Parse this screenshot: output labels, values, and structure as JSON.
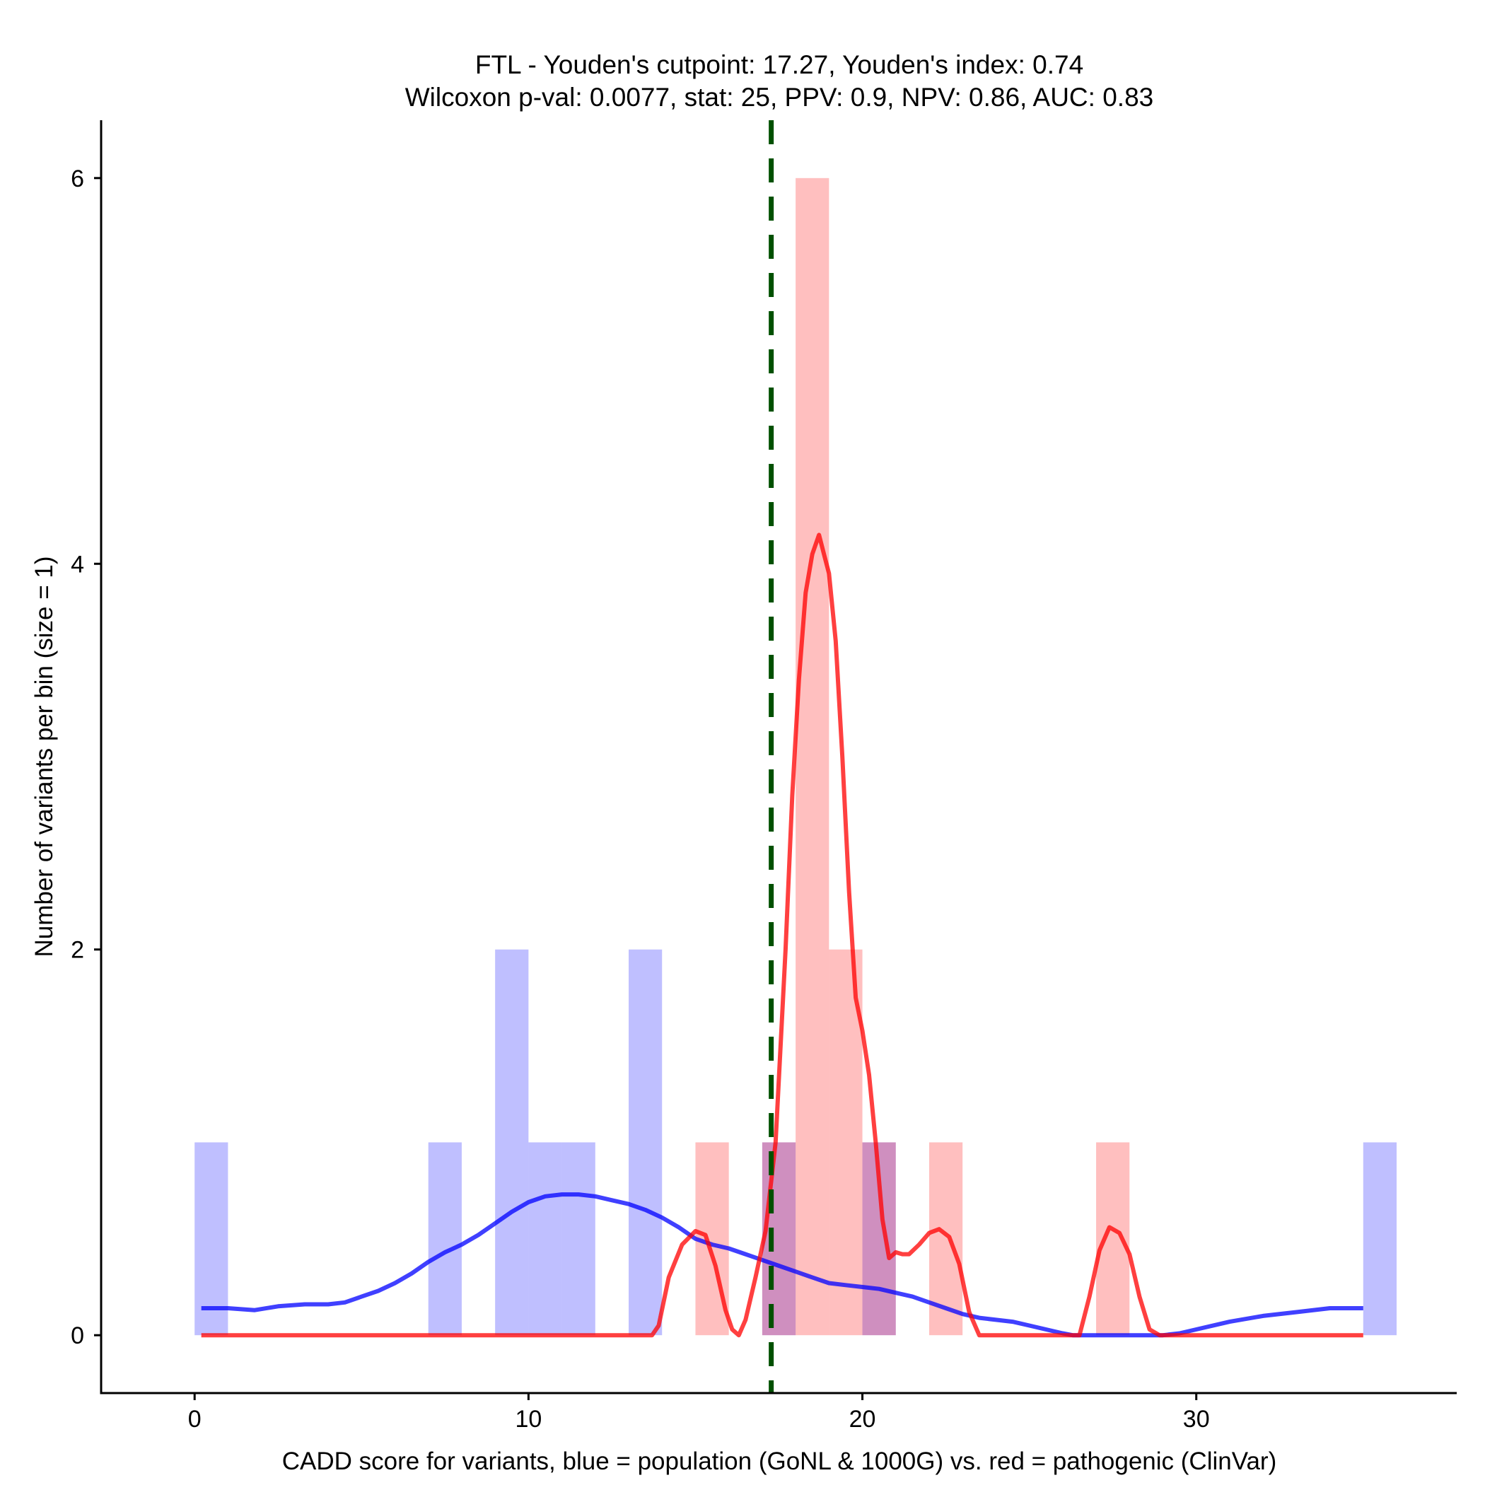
{
  "chart_data": {
    "type": "bar",
    "title_line1": "FTL - Youden's cutpoint: 17.27, Youden's index: 0.74",
    "title_line2": "Wilcoxon p-val: 0.0077, stat: 25, PPV: 0.9, NPV: 0.86, AUC: 0.83",
    "xlabel": "CADD score for variants, blue = population (GoNL & 1000G) vs. red = pathogenic (ClinVar)",
    "ylabel": "Number of variants per bin (size = 1)",
    "xlim": [
      -2.8,
      37.8
    ],
    "ylim": [
      -0.3,
      6.3
    ],
    "x_ticks": [
      0,
      10,
      20,
      30
    ],
    "y_ticks": [
      0,
      2,
      4,
      6
    ],
    "bin_width": 1,
    "cutpoint": 17.27,
    "colors": {
      "population": "#0000ff",
      "pathogenic": "#ff0000",
      "cutpoint": "#005000"
    },
    "series": [
      {
        "name": "population (GoNL & 1000G)",
        "color": "#0000ff",
        "bins": [
          {
            "x": 0,
            "count": 1
          },
          {
            "x": 7,
            "count": 1
          },
          {
            "x": 9,
            "count": 2
          },
          {
            "x": 10,
            "count": 1
          },
          {
            "x": 11,
            "count": 1
          },
          {
            "x": 13,
            "count": 2
          },
          {
            "x": 17,
            "count": 1
          },
          {
            "x": 20,
            "count": 1
          },
          {
            "x": 35,
            "count": 1
          }
        ],
        "density": [
          [
            0.2,
            0.14
          ],
          [
            1,
            0.14
          ],
          [
            1.8,
            0.13
          ],
          [
            2.5,
            0.15
          ],
          [
            3.3,
            0.16
          ],
          [
            4,
            0.16
          ],
          [
            4.5,
            0.17
          ],
          [
            5,
            0.2
          ],
          [
            5.5,
            0.23
          ],
          [
            6,
            0.27
          ],
          [
            6.5,
            0.32
          ],
          [
            7,
            0.38
          ],
          [
            7.5,
            0.43
          ],
          [
            8,
            0.47
          ],
          [
            8.5,
            0.52
          ],
          [
            9,
            0.58
          ],
          [
            9.5,
            0.64
          ],
          [
            10,
            0.69
          ],
          [
            10.5,
            0.72
          ],
          [
            11,
            0.73
          ],
          [
            11.5,
            0.73
          ],
          [
            12,
            0.72
          ],
          [
            12.5,
            0.7
          ],
          [
            13,
            0.68
          ],
          [
            13.5,
            0.65
          ],
          [
            14,
            0.61
          ],
          [
            14.5,
            0.56
          ],
          [
            15,
            0.5
          ],
          [
            15.5,
            0.47
          ],
          [
            16,
            0.45
          ],
          [
            16.5,
            0.42
          ],
          [
            17,
            0.39
          ],
          [
            17.5,
            0.36
          ],
          [
            18,
            0.33
          ],
          [
            18.5,
            0.3
          ],
          [
            19,
            0.27
          ],
          [
            19.5,
            0.26
          ],
          [
            20,
            0.25
          ],
          [
            20.5,
            0.24
          ],
          [
            21,
            0.22
          ],
          [
            21.5,
            0.2
          ],
          [
            22,
            0.17
          ],
          [
            22.5,
            0.14
          ],
          [
            23,
            0.11
          ],
          [
            23.5,
            0.09
          ],
          [
            24,
            0.08
          ],
          [
            24.5,
            0.07
          ],
          [
            25,
            0.05
          ],
          [
            25.5,
            0.03
          ],
          [
            26,
            0.01
          ],
          [
            26.3,
            0
          ],
          [
            27,
            0
          ],
          [
            28,
            0
          ],
          [
            29,
            0
          ],
          [
            29.5,
            0.01
          ],
          [
            30,
            0.03
          ],
          [
            31,
            0.07
          ],
          [
            32,
            0.1
          ],
          [
            33,
            0.12
          ],
          [
            34,
            0.14
          ],
          [
            35,
            0.14
          ]
        ]
      },
      {
        "name": "pathogenic (ClinVar)",
        "color": "#ff0000",
        "bins": [
          {
            "x": 15,
            "count": 1
          },
          {
            "x": 17,
            "count": 1
          },
          {
            "x": 18,
            "count": 6
          },
          {
            "x": 19,
            "count": 2
          },
          {
            "x": 20,
            "count": 1
          },
          {
            "x": 22,
            "count": 1
          },
          {
            "x": 27,
            "count": 1
          }
        ],
        "density": [
          [
            0.2,
            0
          ],
          [
            13.7,
            0
          ],
          [
            13.9,
            0.05
          ],
          [
            14.2,
            0.3
          ],
          [
            14.6,
            0.47
          ],
          [
            15,
            0.54
          ],
          [
            15.3,
            0.52
          ],
          [
            15.6,
            0.36
          ],
          [
            15.9,
            0.13
          ],
          [
            16.1,
            0.03
          ],
          [
            16.3,
            0
          ],
          [
            16.5,
            0.08
          ],
          [
            16.8,
            0.3
          ],
          [
            17.1,
            0.54
          ],
          [
            17.4,
            1
          ],
          [
            17.7,
            2
          ],
          [
            17.9,
            2.8
          ],
          [
            18.1,
            3.4
          ],
          [
            18.3,
            3.85
          ],
          [
            18.5,
            4.05
          ],
          [
            18.7,
            4.15
          ],
          [
            18.85,
            4.05
          ],
          [
            19,
            3.95
          ],
          [
            19.2,
            3.6
          ],
          [
            19.4,
            3.0
          ],
          [
            19.6,
            2.3
          ],
          [
            19.8,
            1.75
          ],
          [
            20,
            1.58
          ],
          [
            20.2,
            1.35
          ],
          [
            20.4,
            1.0
          ],
          [
            20.6,
            0.6
          ],
          [
            20.8,
            0.4
          ],
          [
            21,
            0.43
          ],
          [
            21.2,
            0.42
          ],
          [
            21.4,
            0.42
          ],
          [
            21.7,
            0.47
          ],
          [
            22,
            0.53
          ],
          [
            22.3,
            0.55
          ],
          [
            22.6,
            0.51
          ],
          [
            22.9,
            0.37
          ],
          [
            23.2,
            0.12
          ],
          [
            23.5,
            0
          ],
          [
            25,
            0
          ],
          [
            26.5,
            0
          ],
          [
            26.8,
            0.2
          ],
          [
            27.1,
            0.44
          ],
          [
            27.4,
            0.56
          ],
          [
            27.7,
            0.53
          ],
          [
            28,
            0.42
          ],
          [
            28.3,
            0.2
          ],
          [
            28.6,
            0.03
          ],
          [
            28.9,
            0
          ],
          [
            30,
            0
          ],
          [
            35,
            0
          ]
        ]
      }
    ]
  }
}
